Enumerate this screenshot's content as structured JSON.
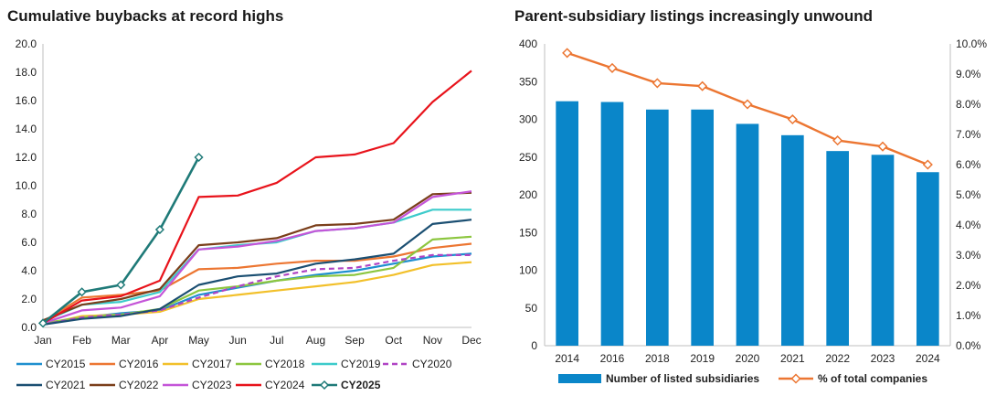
{
  "chart_data": [
    {
      "type": "line",
      "title": "Cumulative buybacks at record highs",
      "xlabel": "",
      "ylabel": "",
      "ylim": [
        0,
        20
      ],
      "yticks": [
        "0.0",
        "2.0",
        "4.0",
        "6.0",
        "8.0",
        "10.0",
        "12.0",
        "14.0",
        "16.0",
        "18.0",
        "20.0"
      ],
      "categories": [
        "Jan",
        "Feb",
        "Mar",
        "Apr",
        "May",
        "Jun",
        "Jul",
        "Aug",
        "Sep",
        "Oct",
        "Nov",
        "Dec"
      ],
      "grid": false,
      "legend_position": "bottom",
      "series": [
        {
          "name": "CY2015",
          "color": "#1f8fcf",
          "dash": false,
          "bold": false,
          "marker": false,
          "values": [
            0.2,
            0.7,
            1.0,
            1.2,
            2.3,
            2.8,
            3.3,
            3.7,
            4.0,
            4.5,
            5.0,
            5.2
          ]
        },
        {
          "name": "CY2016",
          "color": "#ec7632",
          "dash": false,
          "bold": false,
          "marker": false,
          "values": [
            0.4,
            2.1,
            2.3,
            2.6,
            4.1,
            4.2,
            4.5,
            4.7,
            4.7,
            5.0,
            5.6,
            5.9
          ]
        },
        {
          "name": "CY2017",
          "color": "#f2c02a",
          "dash": false,
          "bold": false,
          "marker": false,
          "values": [
            0.2,
            0.8,
            0.9,
            1.1,
            2.0,
            2.3,
            2.6,
            2.9,
            3.2,
            3.7,
            4.4,
            4.6
          ]
        },
        {
          "name": "CY2018",
          "color": "#8cc63f",
          "dash": false,
          "bold": false,
          "marker": false,
          "values": [
            0.3,
            0.7,
            0.9,
            1.3,
            2.6,
            2.9,
            3.3,
            3.6,
            3.7,
            4.2,
            6.2,
            6.4
          ]
        },
        {
          "name": "CY2019",
          "color": "#3dcbcb",
          "dash": false,
          "bold": false,
          "marker": false,
          "values": [
            0.4,
            1.6,
            1.8,
            2.5,
            5.5,
            5.8,
            6.0,
            6.8,
            7.0,
            7.4,
            8.3,
            8.3
          ]
        },
        {
          "name": "CY2020",
          "color": "#b044c4",
          "dash": true,
          "bold": false,
          "marker": false,
          "values": [
            0.2,
            0.7,
            0.9,
            1.2,
            2.1,
            2.9,
            3.6,
            4.1,
            4.2,
            4.7,
            5.1,
            5.1
          ]
        },
        {
          "name": "CY2021",
          "color": "#1b4f72",
          "dash": false,
          "bold": false,
          "marker": false,
          "values": [
            0.2,
            0.6,
            0.8,
            1.3,
            3.0,
            3.6,
            3.8,
            4.5,
            4.8,
            5.2,
            7.3,
            7.6
          ]
        },
        {
          "name": "CY2022",
          "color": "#7a3e1a",
          "dash": false,
          "bold": false,
          "marker": false,
          "values": [
            0.5,
            1.6,
            2.0,
            2.7,
            5.8,
            6.0,
            6.3,
            7.2,
            7.3,
            7.6,
            9.4,
            9.5
          ]
        },
        {
          "name": "CY2023",
          "color": "#c455d8",
          "dash": false,
          "bold": false,
          "marker": false,
          "values": [
            0.3,
            1.2,
            1.4,
            2.2,
            5.5,
            5.7,
            6.1,
            6.8,
            7.0,
            7.4,
            9.2,
            9.6
          ]
        },
        {
          "name": "CY2024",
          "color": "#e8131b",
          "dash": false,
          "bold": false,
          "marker": false,
          "values": [
            0.3,
            1.9,
            2.2,
            3.3,
            9.2,
            9.3,
            10.2,
            12.0,
            12.2,
            13.0,
            15.9,
            18.1
          ]
        },
        {
          "name": "CY2025",
          "color": "#1f7a78",
          "dash": false,
          "bold": true,
          "marker": true,
          "values": [
            0.3,
            2.5,
            3.0,
            6.9,
            12.0,
            null,
            null,
            null,
            null,
            null,
            null,
            null
          ]
        }
      ]
    },
    {
      "type": "bar",
      "title": "Parent-subsidiary listings increasingly unwound",
      "xlabel": "",
      "ylabel": "",
      "ylim": [
        0,
        400
      ],
      "yticks": [
        "0",
        "50",
        "100",
        "150",
        "200",
        "250",
        "300",
        "350",
        "400"
      ],
      "y2lim": [
        0.0,
        10.0
      ],
      "y2ticks": [
        "0.0%",
        "1.0%",
        "2.0%",
        "3.0%",
        "4.0%",
        "5.0%",
        "6.0%",
        "7.0%",
        "8.0%",
        "9.0%",
        "10.0%"
      ],
      "categories": [
        "2014",
        "2016",
        "2018",
        "2019",
        "2020",
        "2021",
        "2022",
        "2023",
        "2024"
      ],
      "grid": false,
      "legend_position": "bottom",
      "series": [
        {
          "name": "Number of listed subsidiaries",
          "kind": "bar",
          "axis": "left",
          "color": "#0a86c9",
          "values": [
            324,
            323,
            313,
            313,
            294,
            279,
            258,
            253,
            230
          ]
        },
        {
          "name": "% of total companies",
          "kind": "line",
          "axis": "right",
          "color": "#ec7632",
          "marker": true,
          "values": [
            9.7,
            9.2,
            8.7,
            8.6,
            8.0,
            7.5,
            6.8,
            6.6,
            6.0
          ]
        }
      ]
    }
  ]
}
